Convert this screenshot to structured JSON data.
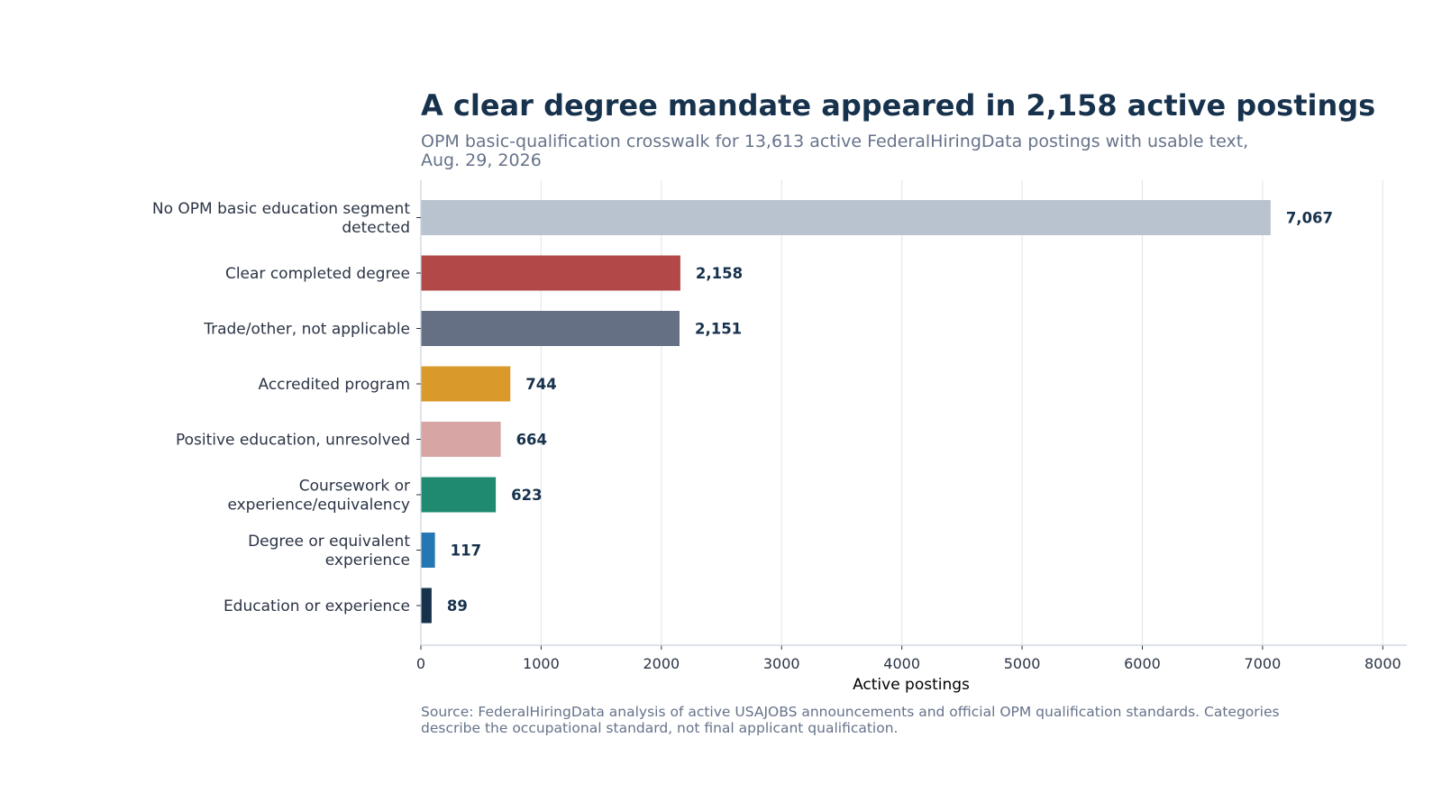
{
  "chart_data": {
    "type": "bar",
    "orientation": "horizontal",
    "title": "A clear degree mandate appeared in 2,158 active postings",
    "subtitle": "OPM basic-qualification crosswalk for 13,613 active FederalHiringData postings with usable text, Aug. 29, 2026",
    "xlabel": "Active postings",
    "ylabel": "",
    "xlim": [
      0,
      8200
    ],
    "xticks": [
      0,
      1000,
      2000,
      3000,
      4000,
      5000,
      6000,
      7000,
      8000
    ],
    "grid": "vertical",
    "categories": [
      "No OPM basic education segment detected",
      "Clear completed degree",
      "Trade/other, not applicable",
      "Accredited program",
      "Positive education, unresolved",
      "Coursework or experience/equivalency",
      "Degree or equivalent experience",
      "Education or experience"
    ],
    "category_display_lines": [
      [
        "No OPM basic education segment",
        "detected"
      ],
      [
        "Clear completed degree"
      ],
      [
        "Trade/other, not applicable"
      ],
      [
        "Accredited program"
      ],
      [
        "Positive education, unresolved"
      ],
      [
        "Coursework or",
        "experience/equivalency"
      ],
      [
        "Degree or equivalent",
        "experience"
      ],
      [
        "Education or experience"
      ]
    ],
    "values": [
      7067,
      2158,
      2151,
      744,
      664,
      623,
      117,
      89
    ],
    "value_labels": [
      "7,067",
      "2,158",
      "2,151",
      "744",
      "664",
      "623",
      "117",
      "89"
    ],
    "colors": [
      "#b9c3cf",
      "#b34848",
      "#667085",
      "#d99a2b",
      "#d8a5a5",
      "#1f8a70",
      "#2477b3",
      "#17324d"
    ],
    "source": "Source: FederalHiringData analysis of active USAJOBS announcements and official OPM qualification standards. Categories describe the occupational standard, not final applicant qualification."
  }
}
